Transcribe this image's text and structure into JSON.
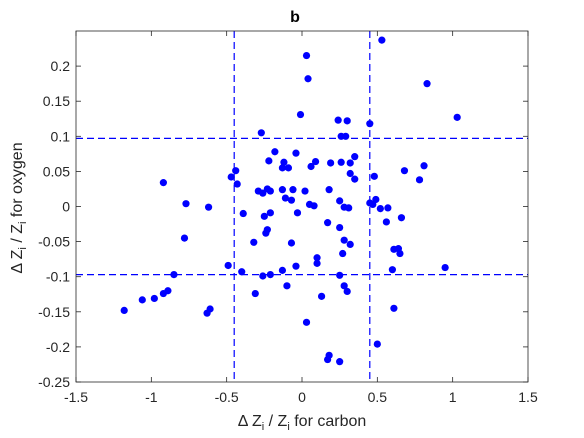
{
  "chart_data": {
    "type": "scatter",
    "title": "b",
    "xlabel": {
      "prefix": "Δ Z",
      "sub1": "i",
      "mid": " / Z",
      "sub2": "i",
      "suffix": " for carbon"
    },
    "ylabel": {
      "prefix": "Δ Z",
      "sub1": "i",
      "mid": " / Z",
      "sub2": "i",
      "suffix": " for oxygen"
    },
    "xlim": [
      -1.5,
      1.5
    ],
    "ylim": [
      -0.25,
      0.25
    ],
    "xticks": [
      -1.5,
      -1,
      -0.5,
      0,
      0.5,
      1,
      1.5
    ],
    "xtick_labels": [
      "-1.5",
      "-1",
      "-0.5",
      "0",
      "0.5",
      "1",
      "1.5"
    ],
    "yticks": [
      -0.25,
      -0.2,
      -0.15,
      -0.1,
      -0.05,
      0,
      0.05,
      0.1,
      0.15,
      0.2
    ],
    "ytick_labels": [
      "-0.25",
      "-0.2",
      "-0.15",
      "-0.1",
      "-0.05",
      "0",
      "0.05",
      "0.1",
      "0.15",
      "0.2"
    ],
    "grid": false,
    "marker_color": "#0000ff",
    "line_color": "#0000ff",
    "reference_lines": {
      "vertical": [
        -0.45,
        0.45
      ],
      "horizontal": [
        -0.097,
        0.097
      ],
      "style": "dashed"
    },
    "series": [
      {
        "marker": "filled-circle",
        "points": [
          [
            0.03,
            0.215
          ],
          [
            0.53,
            0.237
          ],
          [
            0.04,
            0.182
          ],
          [
            0.83,
            0.175
          ],
          [
            1.03,
            0.127
          ],
          [
            -0.01,
            0.131
          ],
          [
            0.24,
            0.123
          ],
          [
            0.3,
            0.122
          ],
          [
            -0.27,
            0.105
          ],
          [
            0.26,
            0.1
          ],
          [
            0.29,
            0.1
          ],
          [
            0.45,
            0.118
          ],
          [
            -0.18,
            0.078
          ],
          [
            -0.04,
            0.076
          ],
          [
            -0.12,
            0.063
          ],
          [
            0.06,
            0.057
          ],
          [
            0.09,
            0.064
          ],
          [
            -0.22,
            0.065
          ],
          [
            -0.13,
            0.055
          ],
          [
            -0.09,
            0.055
          ],
          [
            0.19,
            0.062
          ],
          [
            0.26,
            0.063
          ],
          [
            0.35,
            0.071
          ],
          [
            0.32,
            0.062
          ],
          [
            0.81,
            0.058
          ],
          [
            0.68,
            0.051
          ],
          [
            -0.44,
            0.051
          ],
          [
            -0.47,
            0.042
          ],
          [
            -0.92,
            0.034
          ],
          [
            -0.43,
            0.032
          ],
          [
            0.32,
            0.047
          ],
          [
            0.35,
            0.039
          ],
          [
            0.48,
            0.043
          ],
          [
            0.78,
            0.038
          ],
          [
            -0.29,
            0.022
          ],
          [
            -0.26,
            0.019
          ],
          [
            -0.23,
            0.025
          ],
          [
            -0.21,
            0.022
          ],
          [
            -0.13,
            0.024
          ],
          [
            -0.06,
            0.024
          ],
          [
            0.02,
            0.022
          ],
          [
            0.18,
            0.024
          ],
          [
            -0.77,
            0.004
          ],
          [
            -0.62,
            -0.001
          ],
          [
            -0.11,
            0.012
          ],
          [
            -0.07,
            0.009
          ],
          [
            0.05,
            0.003
          ],
          [
            0.08,
            0.001
          ],
          [
            0.25,
            0.008
          ],
          [
            0.28,
            -0.001
          ],
          [
            0.31,
            -0.002
          ],
          [
            0.45,
            0.005
          ],
          [
            0.47,
            0.003
          ],
          [
            0.49,
            0.01
          ],
          [
            0.52,
            -0.003
          ],
          [
            0.57,
            -0.002
          ],
          [
            -0.39,
            -0.01
          ],
          [
            -0.25,
            -0.014
          ],
          [
            -0.21,
            -0.009
          ],
          [
            -0.03,
            -0.009
          ],
          [
            0.66,
            -0.016
          ],
          [
            -0.23,
            -0.033
          ],
          [
            -0.24,
            -0.038
          ],
          [
            0.17,
            -0.023
          ],
          [
            0.25,
            -0.03
          ],
          [
            0.56,
            -0.022
          ],
          [
            -0.78,
            -0.045
          ],
          [
            0.28,
            -0.048
          ],
          [
            0.32,
            -0.054
          ],
          [
            0.64,
            -0.06
          ],
          [
            0.65,
            -0.067
          ],
          [
            0.27,
            -0.067
          ],
          [
            -0.32,
            -0.051
          ],
          [
            -0.07,
            -0.052
          ],
          [
            0.1,
            -0.073
          ],
          [
            0.1,
            -0.081
          ],
          [
            -0.49,
            -0.084
          ],
          [
            -0.4,
            -0.093
          ],
          [
            -0.26,
            -0.099
          ],
          [
            -0.21,
            -0.097
          ],
          [
            -0.04,
            -0.085
          ],
          [
            0.25,
            -0.098
          ],
          [
            0.6,
            -0.09
          ],
          [
            0.95,
            -0.087
          ],
          [
            0.61,
            -0.061
          ],
          [
            -0.85,
            -0.097
          ],
          [
            -0.89,
            -0.12
          ],
          [
            -0.92,
            -0.124
          ],
          [
            -0.98,
            -0.131
          ],
          [
            -1.06,
            -0.133
          ],
          [
            -1.18,
            -0.148
          ],
          [
            -0.61,
            -0.146
          ],
          [
            -0.63,
            -0.152
          ],
          [
            -0.13,
            -0.091
          ],
          [
            -0.1,
            -0.113
          ],
          [
            -0.31,
            -0.124
          ],
          [
            0.13,
            -0.128
          ],
          [
            0.28,
            -0.113
          ],
          [
            0.3,
            -0.121
          ],
          [
            0.61,
            -0.145
          ],
          [
            0.03,
            -0.165
          ],
          [
            0.5,
            -0.196
          ],
          [
            0.18,
            -0.212
          ],
          [
            0.17,
            -0.218
          ],
          [
            0.25,
            -0.221
          ]
        ]
      }
    ]
  }
}
